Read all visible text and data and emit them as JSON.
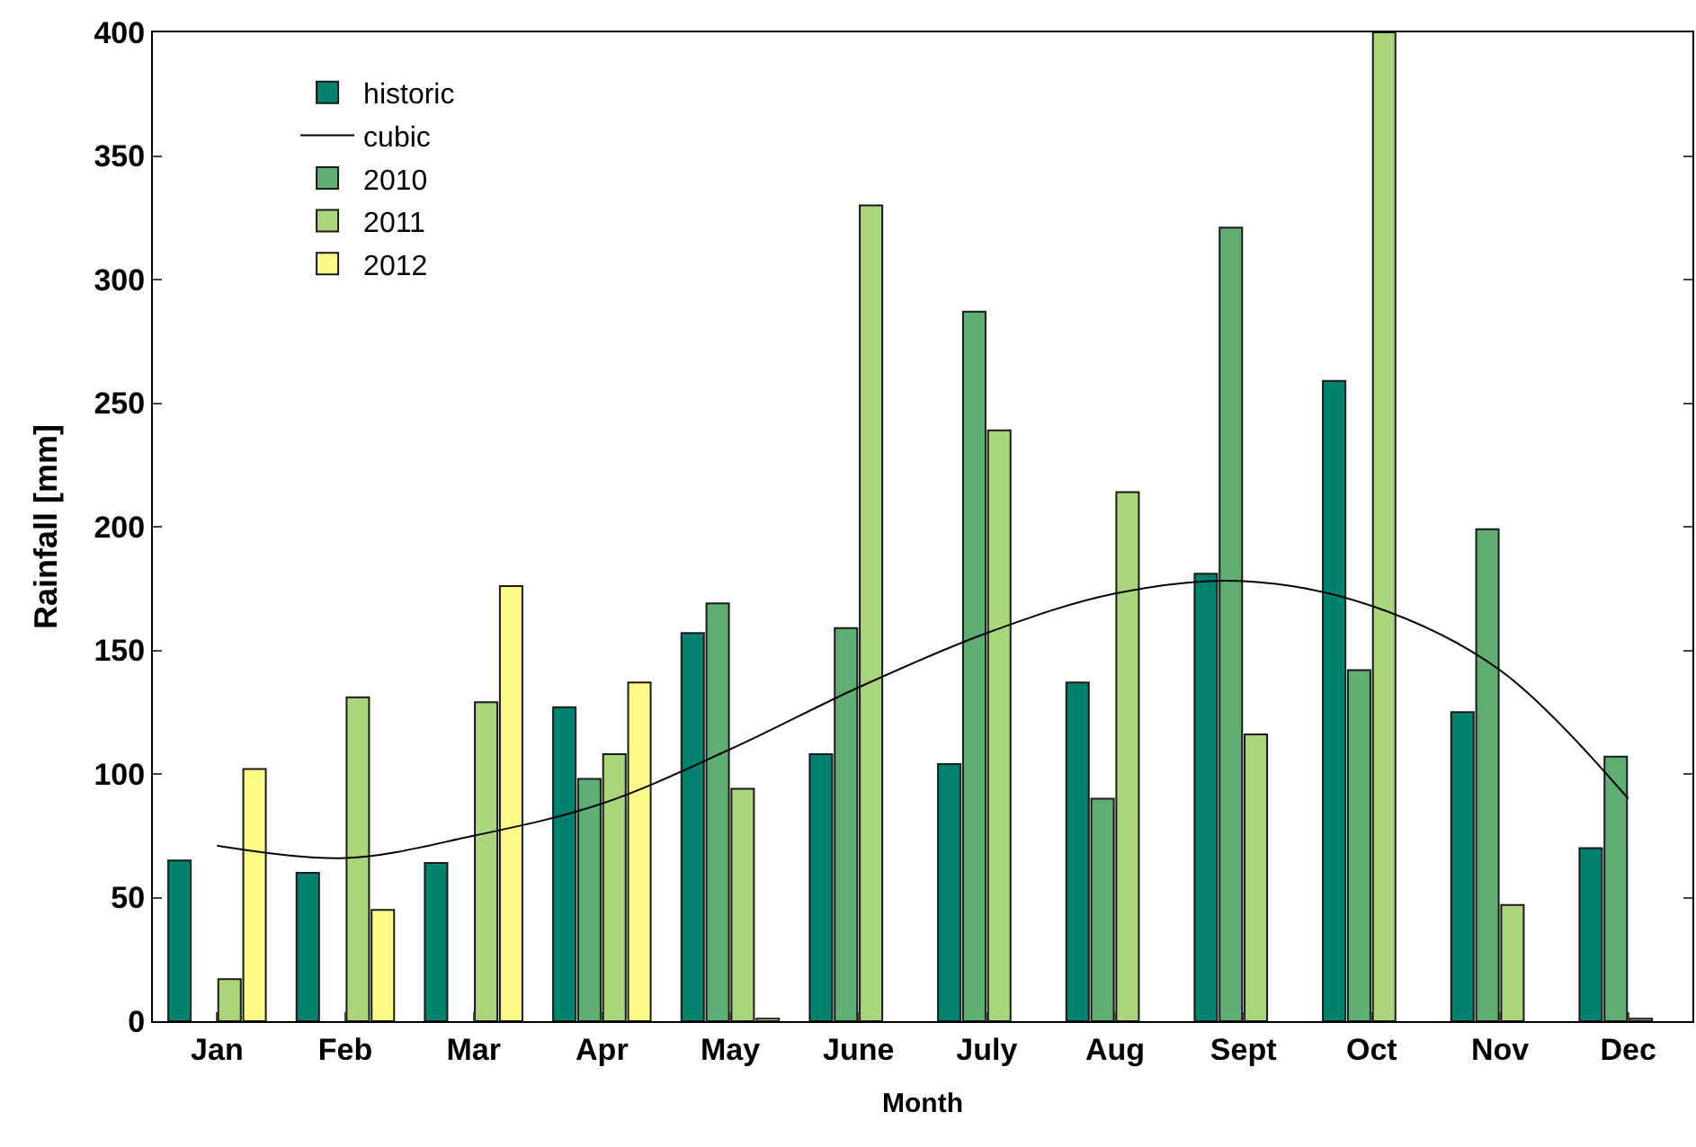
{
  "chart_data": {
    "type": "bar",
    "xlabel": "Month",
    "ylabel": "Rainfall [mm]",
    "categories": [
      "Jan",
      "Feb",
      "Mar",
      "Apr",
      "May",
      "June",
      "July",
      "Aug",
      "Sept",
      "Oct",
      "Nov",
      "Dec"
    ],
    "series": [
      {
        "name": "historic",
        "color": "#00826e",
        "values": [
          65,
          60,
          64,
          127,
          157,
          108,
          104,
          137,
          181,
          259,
          125,
          70
        ]
      },
      {
        "name": "cubic",
        "type": "line",
        "color": "#000000",
        "values": [
          71,
          66,
          75,
          88,
          110,
          135,
          157,
          173,
          178,
          168,
          142,
          90
        ]
      },
      {
        "name": "2010",
        "color": "#5fae73",
        "values": [
          null,
          null,
          null,
          98,
          169,
          159,
          287,
          90,
          321,
          142,
          199,
          107
        ]
      },
      {
        "name": "2011",
        "color": "#aad57a",
        "values": [
          17,
          131,
          129,
          108,
          94,
          330,
          239,
          214,
          116,
          400,
          47,
          1
        ]
      },
      {
        "name": "2012",
        "color": "#fdfa86",
        "values": [
          102,
          45,
          176,
          137,
          1,
          null,
          null,
          null,
          null,
          null,
          null,
          null
        ]
      }
    ],
    "ylim": [
      0,
      400
    ],
    "yticks": [
      0,
      50,
      100,
      150,
      200,
      250,
      300,
      350,
      400
    ],
    "legend": "top left"
  }
}
